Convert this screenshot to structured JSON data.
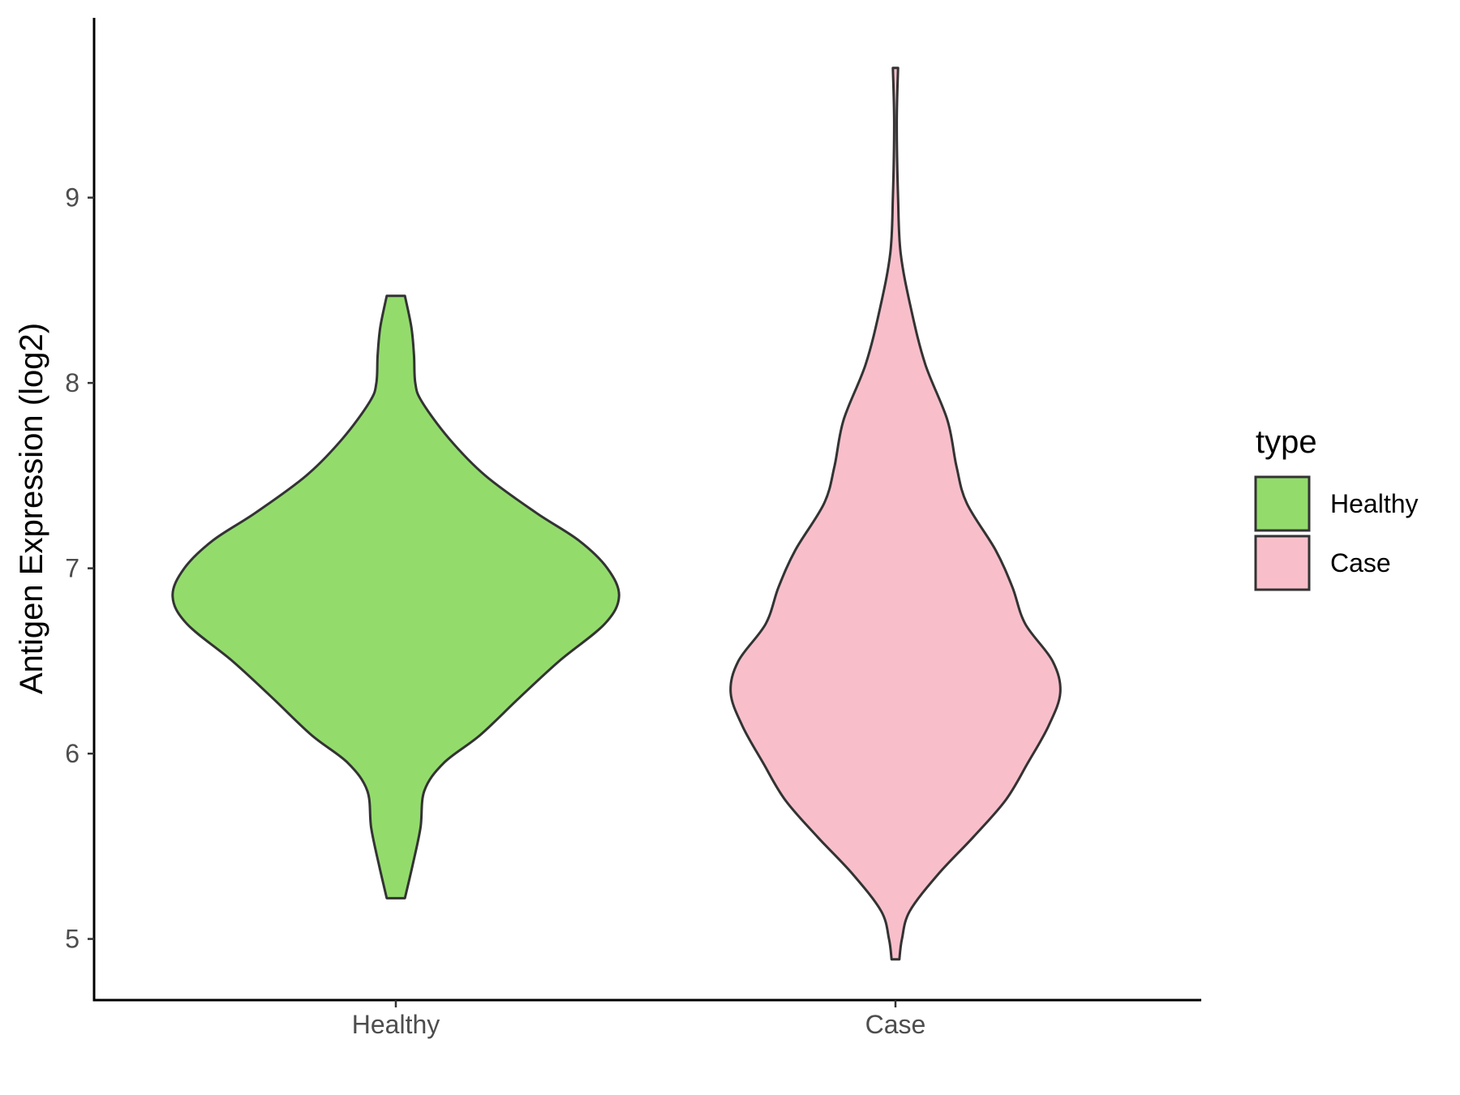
{
  "chart_data": {
    "type": "violin",
    "categories": [
      "Healthy",
      "Case"
    ],
    "ylabel": "Antigen Expression (log2)",
    "xlabel": "",
    "yticks": [
      5,
      6,
      7,
      8,
      9
    ],
    "ylim": [
      4.67,
      9.97
    ],
    "grid": false,
    "legend": {
      "title": "type",
      "placement": "right",
      "entries": [
        {
          "label": "Healthy",
          "color": "#93dc6c"
        },
        {
          "label": "Case",
          "color": "#f8bfcb"
        }
      ]
    },
    "series": [
      {
        "name": "Healthy",
        "color": "#93dc6c",
        "min": 5.22,
        "max": 8.47,
        "density": [
          [
            5.22,
            0.07
          ],
          [
            5.4,
            0.13
          ],
          [
            5.6,
            0.19
          ],
          [
            5.8,
            0.22
          ],
          [
            5.95,
            0.37
          ],
          [
            6.1,
            0.65
          ],
          [
            6.3,
            0.95
          ],
          [
            6.5,
            1.26
          ],
          [
            6.7,
            1.61
          ],
          [
            6.85,
            1.72
          ],
          [
            7.0,
            1.63
          ],
          [
            7.15,
            1.41
          ],
          [
            7.3,
            1.08
          ],
          [
            7.5,
            0.69
          ],
          [
            7.7,
            0.41
          ],
          [
            7.9,
            0.2
          ],
          [
            8.0,
            0.15
          ],
          [
            8.15,
            0.14
          ],
          [
            8.3,
            0.12
          ],
          [
            8.47,
            0.07
          ]
        ]
      },
      {
        "name": "Case",
        "color": "#f8bfcb",
        "min": 4.89,
        "max": 9.7,
        "density": [
          [
            4.89,
            0.03
          ],
          [
            5.0,
            0.05
          ],
          [
            5.15,
            0.11
          ],
          [
            5.35,
            0.33
          ],
          [
            5.55,
            0.6
          ],
          [
            5.75,
            0.85
          ],
          [
            5.95,
            1.02
          ],
          [
            6.15,
            1.18
          ],
          [
            6.33,
            1.27
          ],
          [
            6.5,
            1.21
          ],
          [
            6.7,
            1.0
          ],
          [
            6.9,
            0.9
          ],
          [
            7.1,
            0.77
          ],
          [
            7.35,
            0.55
          ],
          [
            7.55,
            0.47
          ],
          [
            7.8,
            0.4
          ],
          [
            8.1,
            0.23
          ],
          [
            8.4,
            0.12
          ],
          [
            8.7,
            0.04
          ],
          [
            9.0,
            0.02
          ],
          [
            9.4,
            0.01
          ],
          [
            9.7,
            0.02
          ]
        ]
      }
    ]
  }
}
